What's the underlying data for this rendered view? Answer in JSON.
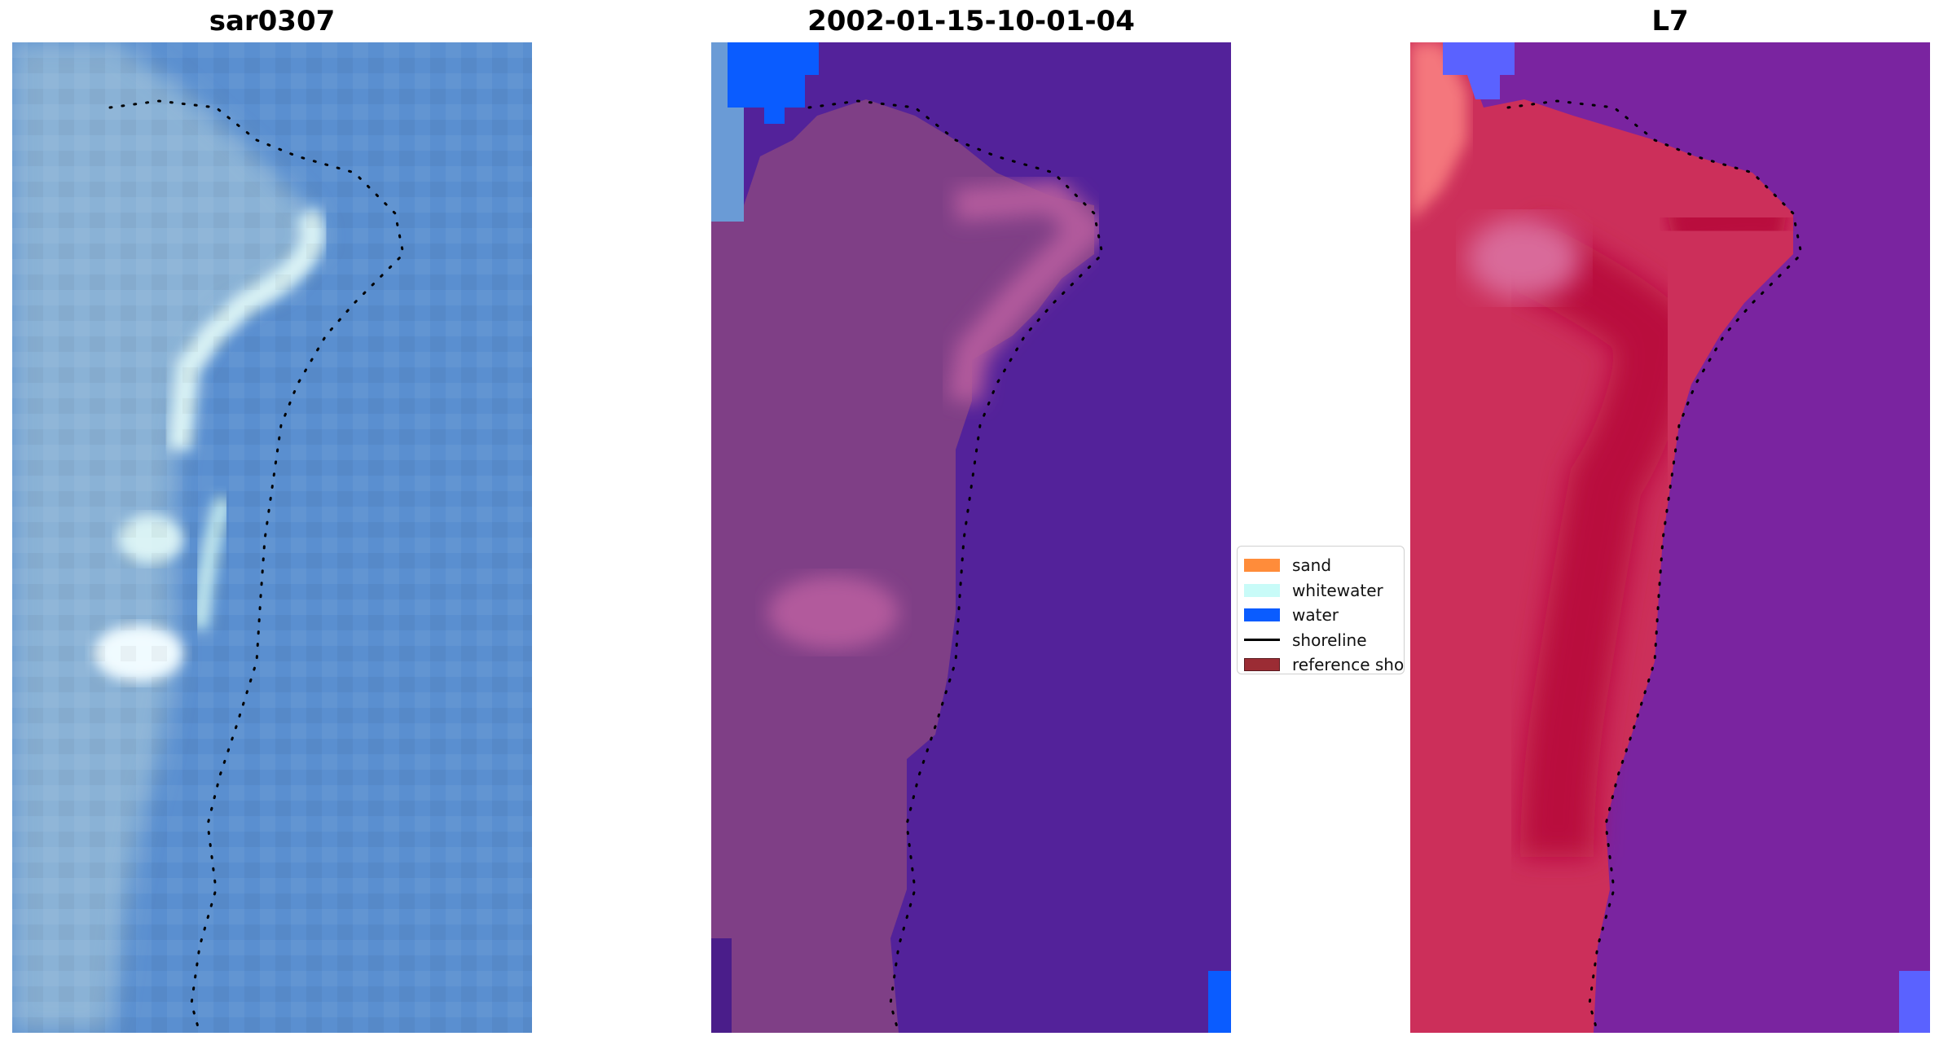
{
  "panels": [
    {
      "id": "rgb",
      "title": "sar0307"
    },
    {
      "id": "classified",
      "title": "2002-01-15-10-01-04"
    },
    {
      "id": "index",
      "title": "L7"
    }
  ],
  "legend": {
    "items": [
      {
        "label": "sand",
        "kind": "patch",
        "color": "#ff8c3a"
      },
      {
        "label": "whitewater",
        "kind": "patch",
        "color": "#c8fbf8"
      },
      {
        "label": "water",
        "kind": "patch",
        "color": "#0a5cff"
      },
      {
        "label": "shoreline",
        "kind": "line",
        "color": "#000000"
      },
      {
        "label": "reference sho",
        "kind": "patch",
        "color": "#9b2c34"
      }
    ]
  },
  "colors": {
    "rgb_water": "#5a8fd0",
    "rgb_land": "#8ab2d6",
    "rgb_surf": "#d9f2f4",
    "class_water_area": "#53229a",
    "class_land": "#7f3f86",
    "class_land_pink": "#b25a9c",
    "class_water_patch": "#0a5cff",
    "class_light_blue": "#6a9bd6",
    "index_land": "#cc2f5a",
    "index_land_dark": "#b9103d",
    "index_water": "#7a24a0",
    "index_blue_patch": "#5a62ff",
    "index_salmon": "#f4777d",
    "shoreline_dots": "#000000"
  }
}
